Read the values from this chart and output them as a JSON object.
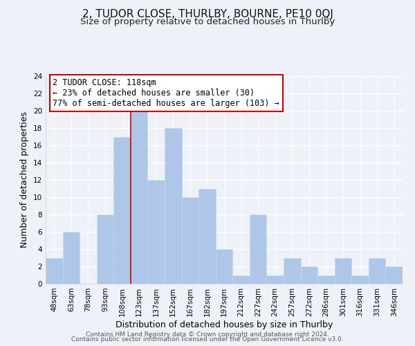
{
  "title": "2, TUDOR CLOSE, THURLBY, BOURNE, PE10 0QJ",
  "subtitle": "Size of property relative to detached houses in Thurlby",
  "xlabel": "Distribution of detached houses by size in Thurlby",
  "ylabel": "Number of detached properties",
  "bin_labels": [
    "48sqm",
    "63sqm",
    "78sqm",
    "93sqm",
    "108sqm",
    "123sqm",
    "137sqm",
    "152sqm",
    "167sqm",
    "182sqm",
    "197sqm",
    "212sqm",
    "227sqm",
    "242sqm",
    "257sqm",
    "272sqm",
    "286sqm",
    "301sqm",
    "316sqm",
    "331sqm",
    "346sqm"
  ],
  "bar_heights": [
    3,
    6,
    0,
    8,
    17,
    20,
    12,
    18,
    10,
    11,
    4,
    1,
    8,
    1,
    3,
    2,
    1,
    3,
    1,
    3,
    2
  ],
  "bar_color": "#aec6e8",
  "bar_edge_color": "#c8d8ee",
  "highlight_line_color": "#cc0000",
  "annotation_text": "2 TUDOR CLOSE: 118sqm\n← 23% of detached houses are smaller (30)\n77% of semi-detached houses are larger (103) →",
  "annotation_box_color": "#ffffff",
  "annotation_box_edge_color": "#cc0000",
  "ylim": [
    0,
    24
  ],
  "yticks": [
    0,
    2,
    4,
    6,
    8,
    10,
    12,
    14,
    16,
    18,
    20,
    22,
    24
  ],
  "footer1": "Contains HM Land Registry data © Crown copyright and database right 2024.",
  "footer2": "Contains public sector information licensed under the Open Government Licence v3.0.",
  "background_color": "#eef2f8",
  "grid_color": "#ffffff",
  "title_fontsize": 11,
  "subtitle_fontsize": 9.5,
  "axis_label_fontsize": 9,
  "tick_fontsize": 7.5,
  "footer_fontsize": 6.5,
  "annotation_fontsize": 8.5
}
